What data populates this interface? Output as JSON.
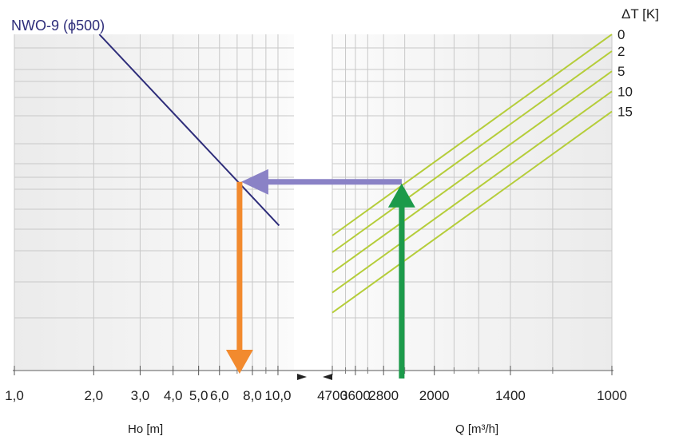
{
  "colors": {
    "grid_line": "#c8c8c8",
    "panel_bg": "#f1f1f1",
    "head_line": "#2e2d7a",
    "dt_lines": "#b5cd3a",
    "arrow_horizontal": "#8a82c6",
    "arrow_down": "#f28a2e",
    "arrow_up": "#1c9a4a"
  },
  "chart_data": [
    {
      "type": "line",
      "title": "NWO-9 (ϕ500)",
      "xlabel": "Ho  [m]",
      "x_scale": "log",
      "xlim": [
        1.0,
        11.5
      ],
      "x_tick_labels": [
        "1,0",
        "2,0",
        "3,0",
        "4,0",
        "5,0",
        "6,0",
        "8,0",
        "10,0"
      ],
      "x_tick_values": [
        1,
        2,
        3,
        4,
        5,
        6,
        8,
        10
      ],
      "series": [
        {
          "x": [
            2.1,
            10.1
          ],
          "y_rel": [
            1.0,
            0.43
          ]
        }
      ],
      "readout": {
        "arrow": "down",
        "x": 7.15
      }
    },
    {
      "type": "line",
      "xlabel": "Q [m³/h]",
      "x_scale": "reciprocal",
      "xlim": [
        4700,
        1000
      ],
      "x_tick_labels": [
        "4700",
        "3600",
        "2800",
        "2000",
        "1400",
        "1000"
      ],
      "x_tick_values": [
        4700,
        3600,
        2800,
        2000,
        1400,
        1000
      ],
      "legend_title": "ΔT [K]",
      "series": [
        {
          "name": "0",
          "x": [
            4700,
            1000
          ],
          "y_rel": [
            0.4,
            1.0
          ]
        },
        {
          "name": "2",
          "x": [
            4700,
            1000
          ],
          "y_rel": [
            0.35,
            0.95
          ]
        },
        {
          "name": "5",
          "x": [
            4700,
            1000
          ],
          "y_rel": [
            0.29,
            0.89
          ]
        },
        {
          "name": "10",
          "x": [
            4700,
            1000
          ],
          "y_rel": [
            0.23,
            0.83
          ]
        },
        {
          "name": "15",
          "x": [
            4700,
            1000
          ],
          "y_rel": [
            0.17,
            0.77
          ]
        }
      ],
      "readout": {
        "arrow": "up",
        "x": 2450,
        "y_rel": 0.56
      }
    }
  ]
}
